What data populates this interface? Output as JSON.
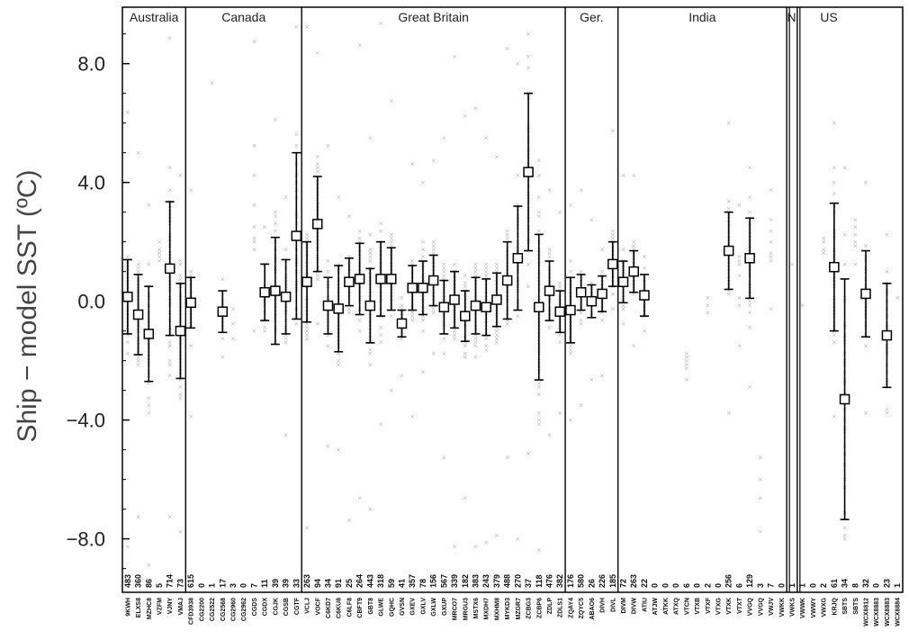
{
  "chart_data": {
    "type": "scatter",
    "ylabel": "Ship − model SST (ºC)",
    "ylim": [
      -9.8,
      9.9
    ],
    "yticks": [
      {
        "value": 8,
        "label": "8.0"
      },
      {
        "value": 4,
        "label": "4.0"
      },
      {
        "value": 0,
        "label": "0.0"
      },
      {
        "value": -4,
        "label": "−4.0"
      },
      {
        "value": -8,
        "label": "−8.0"
      }
    ],
    "groups": [
      {
        "name": "Australia",
        "start": 0,
        "end": 6
      },
      {
        "name": "Canada",
        "start": 6,
        "end": 17
      },
      {
        "name": "Great Britain",
        "start": 17,
        "end": 42
      },
      {
        "name": "Ger.",
        "start": 42,
        "end": 47
      },
      {
        "name": "India",
        "start": 47,
        "end": 63
      },
      {
        "name": "N",
        "start": 63,
        "end": 64
      },
      {
        "name": "US",
        "start": 64,
        "end": 70
      }
    ],
    "stations": [
      {
        "call": "9KWH",
        "count": "483",
        "mean": 0.15,
        "sd": 1.25,
        "min": -8.3,
        "max": 6.4
      },
      {
        "call": "ELXS8",
        "count": "360",
        "mean": -0.45,
        "sd": 1.35,
        "min": -7.3,
        "max": 5.0
      },
      {
        "call": "MZHC8",
        "count": "86",
        "mean": -1.1,
        "sd": 1.6,
        "min": -8.9,
        "max": 3.2
      },
      {
        "call": "VZFM",
        "count": "5",
        "mean": null,
        "sd": null,
        "min": 1.4,
        "max": 2.0
      },
      {
        "call": "VJNY",
        "count": "714",
        "mean": 1.1,
        "sd": 2.25,
        "min": -7.2,
        "max": 8.9
      },
      {
        "call": "VMAJ",
        "count": "73",
        "mean": -1.0,
        "sd": 1.6,
        "min": -7.8,
        "max": 4.2
      },
      {
        "call": "CFD3938",
        "count": "615",
        "mean": -0.05,
        "sd": 0.85,
        "min": -3.9,
        "max": 3.7
      },
      {
        "call": "CG2200",
        "count": "0",
        "mean": null,
        "sd": null,
        "min": null,
        "max": null
      },
      {
        "call": "CG2522",
        "count": "1",
        "mean": null,
        "sd": null,
        "min": 7.4,
        "max": 7.4
      },
      {
        "call": "CG2568",
        "count": "17",
        "mean": -0.35,
        "sd": 0.7,
        "min": -1.9,
        "max": 0.8
      },
      {
        "call": "CG2960",
        "count": "3",
        "mean": null,
        "sd": null,
        "min": -1.3,
        "max": -0.2
      },
      {
        "call": "CG2962",
        "count": "0",
        "mean": null,
        "sd": null,
        "min": null,
        "max": null
      },
      {
        "call": "CGDS",
        "count": "7",
        "mean": null,
        "sd": null,
        "min": -1.0,
        "max": 8.8
      },
      {
        "call": "CGDX",
        "count": "11",
        "mean": 0.3,
        "sd": 0.95,
        "min": -1.0,
        "max": 2.5
      },
      {
        "call": "CGJK",
        "count": "39",
        "mean": 0.35,
        "sd": 1.8,
        "min": -1.4,
        "max": 6.1
      },
      {
        "call": "CGSB",
        "count": "39",
        "mean": 0.15,
        "sd": 1.25,
        "min": -4.5,
        "max": 3.5
      },
      {
        "call": "CGTF",
        "count": "33",
        "mean": 2.2,
        "sd": 2.8,
        "min": -0.8,
        "max": 9.2
      },
      {
        "call": "VCLJ",
        "count": "263",
        "mean": 0.65,
        "sd": 1.35,
        "min": -7.6,
        "max": 9.2
      },
      {
        "call": "VOCF",
        "count": "94",
        "mean": 2.6,
        "sd": 1.6,
        "min": -0.7,
        "max": 8.4
      },
      {
        "call": "C6KD7",
        "count": "34",
        "mean": -0.15,
        "sd": 0.95,
        "min": -4.9,
        "max": 5.2
      },
      {
        "call": "C6KU8",
        "count": "91",
        "mean": -0.25,
        "sd": 1.45,
        "min": -5.0,
        "max": 3.5
      },
      {
        "call": "C6LF8",
        "count": "25",
        "mean": 0.65,
        "sd": 0.8,
        "min": -7.4,
        "max": 2.9
      },
      {
        "call": "CBFT9",
        "count": "264",
        "mean": 0.75,
        "sd": 1.2,
        "min": -6.6,
        "max": 8.6
      },
      {
        "call": "GBT8",
        "count": "443",
        "mean": -0.15,
        "sd": 1.25,
        "min": -7.0,
        "max": 5.5
      },
      {
        "call": "GLWE",
        "count": "318",
        "mean": 0.75,
        "sd": 1.25,
        "min": -4.1,
        "max": 9.4
      },
      {
        "call": "GQHC",
        "count": "59",
        "mean": 0.75,
        "sd": 1.05,
        "min": -3.0,
        "max": 6.8
      },
      {
        "call": "GVSN",
        "count": "41",
        "mean": -0.75,
        "sd": 0.45,
        "min": -2.5,
        "max": 0.1
      },
      {
        "call": "GXEV",
        "count": "357",
        "mean": 0.45,
        "sd": 0.75,
        "min": -3.9,
        "max": 4.6
      },
      {
        "call": "GXLV",
        "count": "78",
        "mean": 0.45,
        "sd": 0.9,
        "min": -2.4,
        "max": 4.0
      },
      {
        "call": "GXLW",
        "count": "156",
        "mean": 0.7,
        "sd": 0.85,
        "min": -1.8,
        "max": 4.8
      },
      {
        "call": "GXUP",
        "count": "567",
        "mean": -0.2,
        "sd": 0.9,
        "min": -5.3,
        "max": 5.5
      },
      {
        "call": "MRCO7",
        "count": "339",
        "mean": 0.05,
        "sd": 0.95,
        "min": -8.3,
        "max": 8.2
      },
      {
        "call": "MRGU3",
        "count": "182",
        "mean": -0.5,
        "sd": 0.85,
        "min": -6.6,
        "max": 6.3
      },
      {
        "call": "MSTX6",
        "count": "383",
        "mean": -0.15,
        "sd": 0.95,
        "min": -8.3,
        "max": 6.5
      },
      {
        "call": "MXDH7",
        "count": "243",
        "mean": -0.2,
        "sd": 0.95,
        "min": -8.1,
        "max": 5.5
      },
      {
        "call": "MXHM8",
        "count": "379",
        "mean": 0.05,
        "sd": 0.9,
        "min": -7.9,
        "max": 4.9
      },
      {
        "call": "MYKD3",
        "count": "488",
        "mean": 0.7,
        "sd": 1.3,
        "min": -5.2,
        "max": 8.5
      },
      {
        "call": "MZGR7",
        "count": "270",
        "mean": 1.45,
        "sd": 1.75,
        "min": -8.0,
        "max": 8.0
      },
      {
        "call": "ZCBG3",
        "count": "37",
        "mean": 4.35,
        "sd": 2.65,
        "min": -5.1,
        "max": 9.0
      },
      {
        "call": "ZCBP6",
        "count": "118",
        "mean": -0.2,
        "sd": 2.45,
        "min": -8.4,
        "max": 4.8
      },
      {
        "call": "ZDLP",
        "count": "476",
        "mean": 0.35,
        "sd": 1.0,
        "min": -4.5,
        "max": 3.8
      },
      {
        "call": "ZDLS1",
        "count": "382",
        "mean": -0.35,
        "sd": 0.7,
        "min": -3.8,
        "max": 3.0
      },
      {
        "call": "ZQAY4",
        "count": "176",
        "mean": -0.3,
        "sd": 1.1,
        "min": -4.0,
        "max": 3.2
      },
      {
        "call": "ZQYC5",
        "count": "580",
        "mean": 0.3,
        "sd": 0.6,
        "min": -3.5,
        "max": 3.8
      },
      {
        "call": "ABAO6",
        "count": "26",
        "mean": 0.0,
        "sd": 0.55,
        "min": -2.6,
        "max": 2.7
      },
      {
        "call": "DIVH",
        "count": "226",
        "mean": 0.25,
        "sd": 0.6,
        "min": -2.5,
        "max": 1.8
      },
      {
        "call": "DIVL",
        "count": "185",
        "mean": 1.25,
        "sd": 0.75,
        "min": -0.2,
        "max": 5.8
      },
      {
        "call": "DIVM",
        "count": "72",
        "mean": 0.65,
        "sd": 0.7,
        "min": -0.8,
        "max": 4.3
      },
      {
        "call": "DIVW",
        "count": "263",
        "mean": 1.0,
        "sd": 0.7,
        "min": -1.5,
        "max": 4.2
      },
      {
        "call": "ATIU",
        "count": "22",
        "mean": 0.2,
        "sd": 0.7,
        "min": -1.0,
        "max": 1.5
      },
      {
        "call": "ATJW",
        "count": "0",
        "mean": null,
        "sd": null,
        "min": null,
        "max": null
      },
      {
        "call": "ATKK",
        "count": "0",
        "mean": null,
        "sd": null,
        "min": null,
        "max": null
      },
      {
        "call": "ATXQ",
        "count": "0",
        "mean": null,
        "sd": null,
        "min": null,
        "max": null
      },
      {
        "call": "VTCN",
        "count": "6",
        "mean": null,
        "sd": null,
        "min": -2.6,
        "max": -1.7
      },
      {
        "call": "VTXB",
        "count": "0",
        "mean": null,
        "sd": null,
        "min": null,
        "max": null
      },
      {
        "call": "VTXF",
        "count": "2",
        "mean": null,
        "sd": null,
        "min": -0.4,
        "max": 0.1
      },
      {
        "call": "VTXG",
        "count": "0",
        "mean": null,
        "sd": null,
        "min": null,
        "max": null
      },
      {
        "call": "VTXK",
        "count": "256",
        "mean": 1.7,
        "sd": 1.3,
        "min": -3.7,
        "max": 6.0
      },
      {
        "call": "VTXT",
        "count": "6",
        "mean": null,
        "sd": null,
        "min": -1.5,
        "max": 3.3
      },
      {
        "call": "VVGQ",
        "count": "129",
        "mean": 1.45,
        "sd": 1.35,
        "min": -2.9,
        "max": 4.5
      },
      {
        "call": "VVGQ",
        "count": "3",
        "mean": null,
        "sd": null,
        "min": -7.8,
        "max": -5.3
      },
      {
        "call": "VWJV",
        "count": "7",
        "mean": null,
        "sd": null,
        "min": -0.2,
        "max": 3.8
      },
      {
        "call": "VWKK",
        "count": "0",
        "mean": null,
        "sd": null,
        "min": null,
        "max": null
      },
      {
        "call": "VWKS",
        "count": "1",
        "mean": null,
        "sd": null,
        "min": 1.3,
        "max": 1.3
      },
      {
        "call": "VWWK",
        "count": "1",
        "mean": null,
        "sd": null,
        "min": -0.1,
        "max": -0.1
      },
      {
        "call": "VWWY",
        "count": "0",
        "mean": null,
        "sd": null,
        "min": null,
        "max": null
      },
      {
        "call": "VWXG",
        "count": "2",
        "mean": null,
        "sd": null,
        "min": 1.6,
        "max": 2.1
      },
      {
        "call": "KRJQ",
        "count": "61",
        "mean": 1.15,
        "sd": 2.15,
        "min": -3.9,
        "max": 6.0
      },
      {
        "call": "SBTS",
        "count": "34",
        "mean": -3.3,
        "sd": 4.05,
        "min": -8.0,
        "max": 4.5
      },
      {
        "call": "SBTS",
        "count": "8",
        "mean": null,
        "sd": null,
        "min": 1.3,
        "max": 2.8
      },
      {
        "call": "WCX8812",
        "count": "32",
        "mean": 0.25,
        "sd": 1.45,
        "min": -3.8,
        "max": 4.0
      },
      {
        "call": "WCX8883",
        "count": "0",
        "mean": null,
        "sd": null,
        "min": null,
        "max": null
      },
      {
        "call": "WCX8883",
        "count": "23",
        "mean": -1.15,
        "sd": 1.75,
        "min": -3.7,
        "max": 2.3
      },
      {
        "call": "WCX8884",
        "count": "1",
        "mean": null,
        "sd": null,
        "min": 0.1,
        "max": 0.1
      }
    ]
  }
}
